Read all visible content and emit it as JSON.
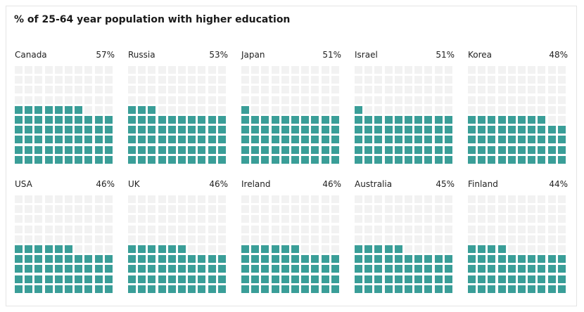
{
  "title": "% of 25-64 year population with higher education",
  "colors": {
    "filled": "#3a9e98",
    "empty": "#f2f2f2"
  },
  "chart_data": {
    "type": "waffle",
    "title": "% of 25-64 year population with higher education",
    "grid": "10x10",
    "unit": "%",
    "categories": [
      "Canada",
      "Russia",
      "Japan",
      "Israel",
      "Korea",
      "USA",
      "UK",
      "Ireland",
      "Australia",
      "Finland"
    ],
    "values": [
      57,
      53,
      51,
      51,
      48,
      46,
      46,
      46,
      45,
      44
    ],
    "labels": [
      "57%",
      "53%",
      "51%",
      "51%",
      "48%",
      "46%",
      "46%",
      "46%",
      "45%",
      "44%"
    ]
  }
}
